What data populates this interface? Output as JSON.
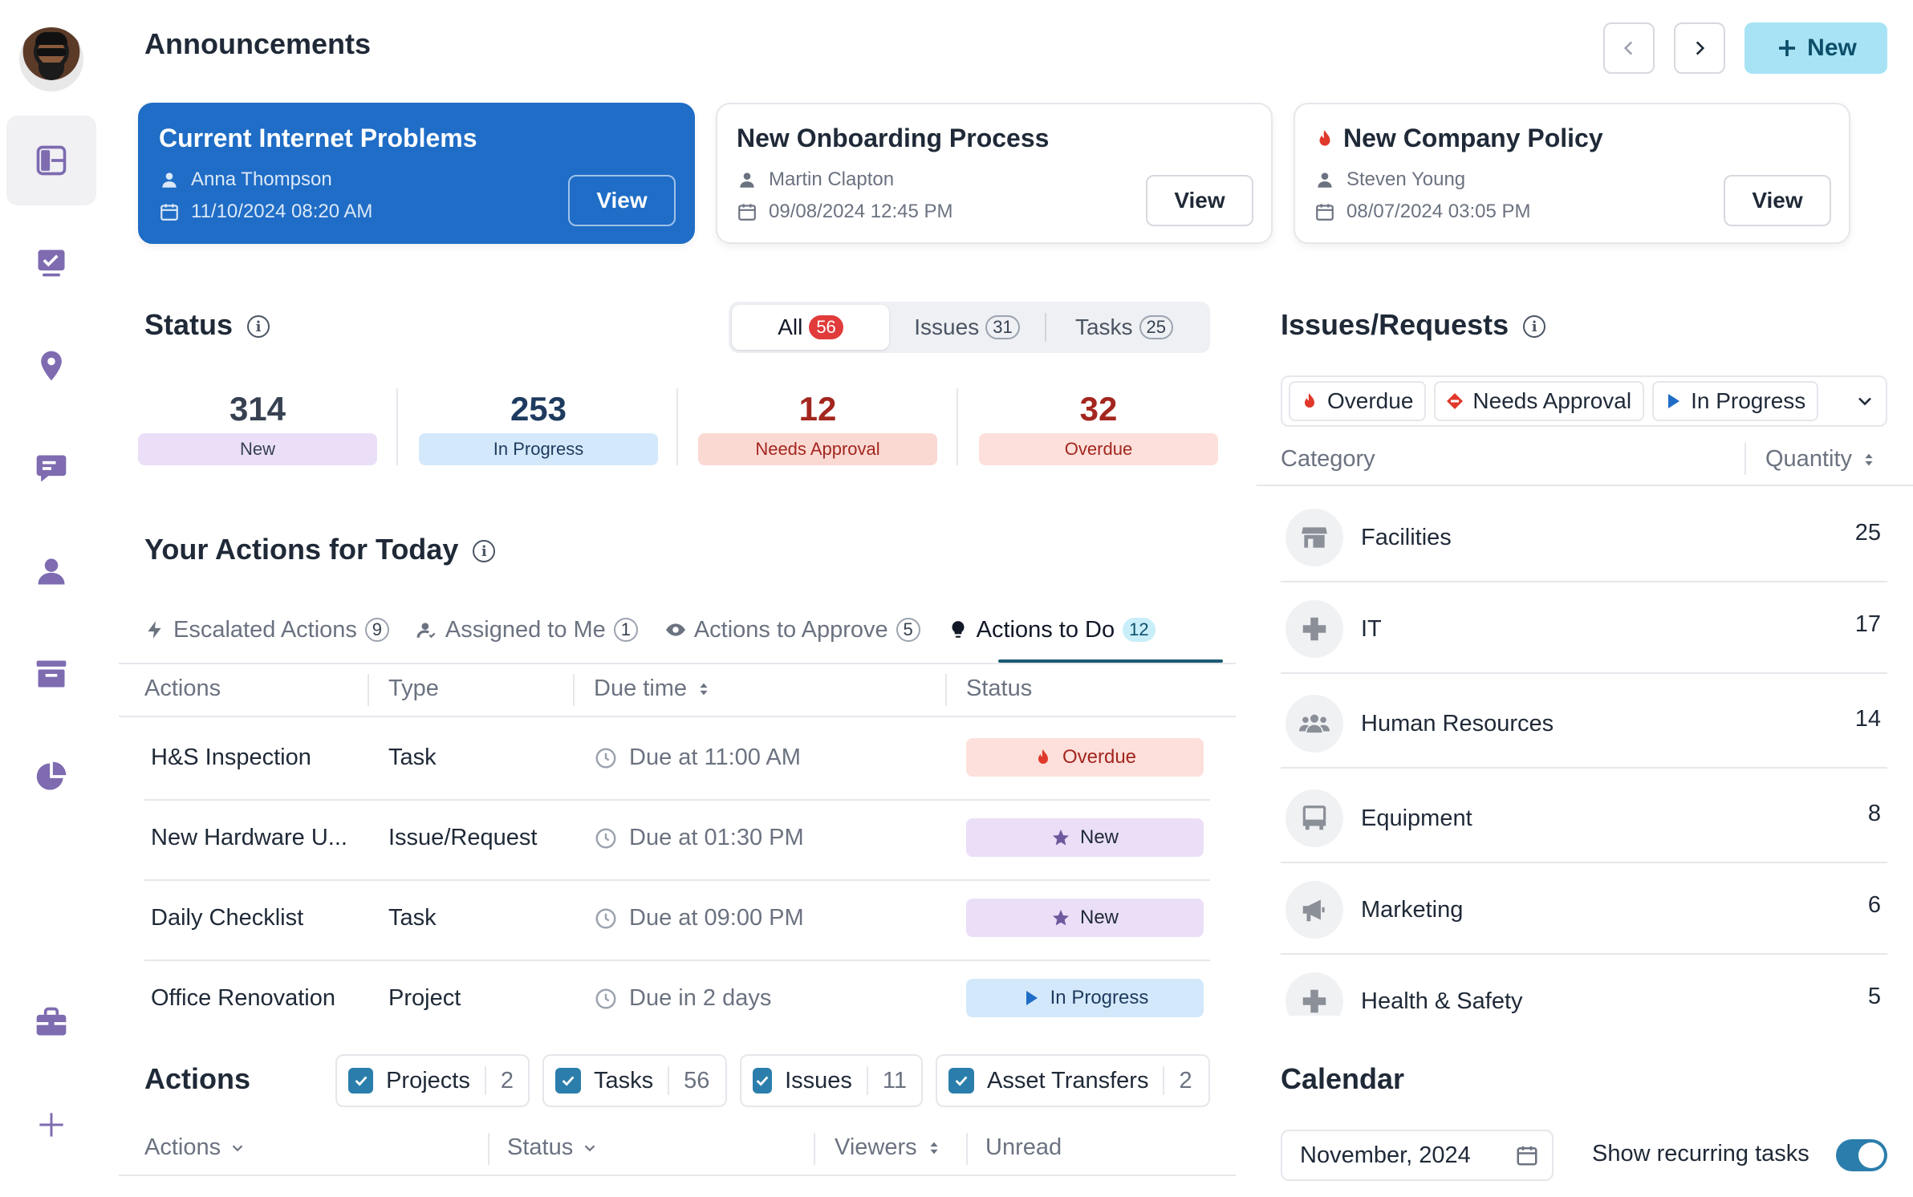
{
  "announcements": {
    "title": "Announcements",
    "new_label": "New",
    "cards": [
      {
        "title": "Current Internet Problems",
        "author": "Anna Thompson",
        "date": "11/10/2024 08:20 AM",
        "view": "View"
      },
      {
        "title": "New Onboarding Process",
        "author": "Martin Clapton",
        "date": "09/08/2024 12:45 PM",
        "view": "View"
      },
      {
        "title": "New Company Policy",
        "author": "Steven Young",
        "date": "08/07/2024 03:05 PM",
        "view": "View"
      }
    ]
  },
  "status": {
    "title": "Status",
    "segments": [
      {
        "label": "All",
        "count": "56"
      },
      {
        "label": "Issues",
        "count": "31"
      },
      {
        "label": "Tasks",
        "count": "25"
      }
    ],
    "stats": [
      {
        "value": "314",
        "label": "New",
        "color": "#374151",
        "bg": "#ebdff8"
      },
      {
        "value": "253",
        "label": "In Progress",
        "color": "#1e3a5f",
        "bg": "#d3e9fb"
      },
      {
        "value": "12",
        "label": "Needs Approval",
        "color": "#a3261f",
        "bg": "#fbd9d3"
      },
      {
        "value": "32",
        "label": "Overdue",
        "color": "#a3261f",
        "bg": "#fde0db"
      }
    ]
  },
  "today": {
    "title": "Your Actions for Today",
    "tabs": [
      {
        "label": "Escalated Actions",
        "count": "9"
      },
      {
        "label": "Assigned to Me",
        "count": "1"
      },
      {
        "label": "Actions to Approve",
        "count": "5"
      },
      {
        "label": "Actions to Do",
        "count": "12"
      }
    ],
    "columns": [
      "Actions",
      "Type",
      "Due time",
      "Status"
    ],
    "rows": [
      {
        "action": "H&S Inspection",
        "type": "Task",
        "due": "Due at 11:00 AM",
        "status": "Overdue"
      },
      {
        "action": "New Hardware U...",
        "type": "Issue/Request",
        "due": "Due at 01:30 PM",
        "status": "New"
      },
      {
        "action": "Daily Checklist",
        "type": "Task",
        "due": "Due at 09:00 PM",
        "status": "New"
      },
      {
        "action": "Office Renovation",
        "type": "Project",
        "due": "Due in 2 days",
        "status": "In Progress"
      }
    ]
  },
  "actions": {
    "title": "Actions",
    "filters": [
      {
        "label": "Projects",
        "count": "2"
      },
      {
        "label": "Tasks",
        "count": "56"
      },
      {
        "label": "Issues",
        "count": "11"
      },
      {
        "label": "Asset Transfers",
        "count": "2"
      }
    ],
    "columns": [
      "Actions",
      "Status",
      "Viewers",
      "Unread"
    ]
  },
  "issues": {
    "title": "Issues/Requests",
    "filters": [
      "Overdue",
      "Needs Approval",
      "In Progress"
    ],
    "columns": [
      "Category",
      "Quantity"
    ],
    "rows": [
      {
        "name": "Facilities",
        "qty": "25",
        "icon": "store-icon"
      },
      {
        "name": "IT",
        "qty": "17",
        "icon": "plus-cross-icon"
      },
      {
        "name": "Human Resources",
        "qty": "14",
        "icon": "people-icon"
      },
      {
        "name": "Equipment",
        "qty": "8",
        "icon": "equipment-icon"
      },
      {
        "name": "Marketing",
        "qty": "6",
        "icon": "megaphone-icon"
      },
      {
        "name": "Health & Safety",
        "qty": "5",
        "icon": "plus-cross-icon"
      }
    ]
  },
  "calendar": {
    "title": "Calendar",
    "month": "November, 2024",
    "toggle_label": "Show recurring tasks",
    "toggle_on": true
  },
  "colors": {
    "accent": "#1f6dc6",
    "teal": "#2b7eab",
    "new_btn": "#a8e3f5",
    "sidebar_icon": "#7e6bb0"
  }
}
